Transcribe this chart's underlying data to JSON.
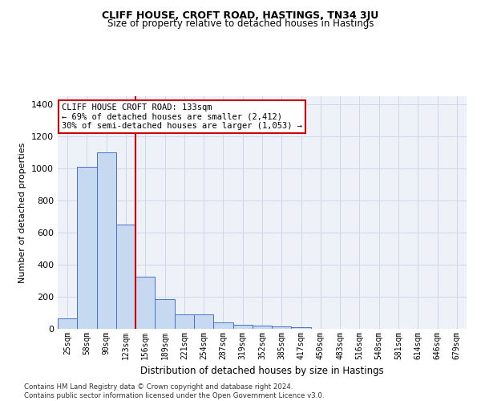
{
  "title": "CLIFF HOUSE, CROFT ROAD, HASTINGS, TN34 3JU",
  "subtitle": "Size of property relative to detached houses in Hastings",
  "xlabel": "Distribution of detached houses by size in Hastings",
  "ylabel": "Number of detached properties",
  "bar_labels": [
    "25sqm",
    "58sqm",
    "90sqm",
    "123sqm",
    "156sqm",
    "189sqm",
    "221sqm",
    "254sqm",
    "287sqm",
    "319sqm",
    "352sqm",
    "385sqm",
    "417sqm",
    "450sqm",
    "483sqm",
    "516sqm",
    "548sqm",
    "581sqm",
    "614sqm",
    "646sqm",
    "679sqm"
  ],
  "bar_values": [
    65,
    1010,
    1100,
    650,
    325,
    185,
    90,
    90,
    40,
    25,
    20,
    15,
    10,
    0,
    0,
    0,
    0,
    0,
    0,
    0,
    0
  ],
  "bar_color": "#c6d9f0",
  "bar_edge_color": "#4472c4",
  "highlight_bin": 3,
  "highlight_color": "#cc0000",
  "annotation_line1": "CLIFF HOUSE CROFT ROAD: 133sqm",
  "annotation_line2": "← 69% of detached houses are smaller (2,412)",
  "annotation_line3": "30% of semi-detached houses are larger (1,053) →",
  "annotation_box_color": "#cc0000",
  "ylim": [
    0,
    1450
  ],
  "yticks": [
    0,
    200,
    400,
    600,
    800,
    1000,
    1200,
    1400
  ],
  "grid_color": "#d0d8e8",
  "bg_color": "#eef2f8",
  "title_fontsize": 9,
  "subtitle_fontsize": 8.5,
  "ylabel_fontsize": 8,
  "xlabel_fontsize": 8.5,
  "footer": "Contains HM Land Registry data © Crown copyright and database right 2024.\nContains public sector information licensed under the Open Government Licence v3.0."
}
